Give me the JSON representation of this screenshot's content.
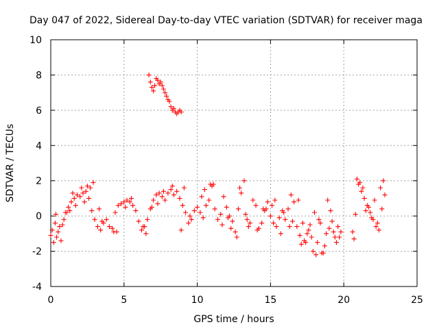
{
  "chart_data": {
    "type": "scatter",
    "title": "Day 047 of 2022, Sidereal Day-to-day VTEC variation (SDTVAR) for receiver maga",
    "xlabel": "GPS time / hours",
    "ylabel": "SDTVAR / TECUs",
    "xlim": [
      0,
      25
    ],
    "ylim": [
      -4,
      10
    ],
    "xticks": [
      "0",
      "5",
      "10",
      "15",
      "20",
      "25"
    ],
    "yticks": [
      "-4",
      "-2",
      "0",
      "2",
      "4",
      "6",
      "8",
      "10"
    ],
    "grid": true,
    "marker": "+",
    "series": [
      {
        "name": "SDTVAR",
        "color": "#ff0000",
        "x": [
          0.0,
          0.2,
          0.4,
          0.6,
          0.8,
          1.0,
          1.2,
          1.4,
          1.6,
          1.8,
          2.0,
          2.2,
          2.4,
          2.6,
          2.8,
          3.0,
          3.2,
          3.4,
          3.6,
          3.8,
          4.0,
          4.2,
          4.4,
          4.6,
          4.8,
          5.0,
          5.2,
          5.4,
          5.6,
          5.8,
          6.0,
          6.2,
          6.4,
          6.6,
          6.8,
          7.0,
          7.2,
          7.4,
          7.6,
          7.8,
          8.0,
          8.2,
          8.4,
          8.6,
          8.8,
          9.0,
          9.2,
          9.4,
          9.6,
          9.8,
          10.0,
          10.2,
          10.4,
          10.6,
          10.8,
          11.0,
          11.2,
          11.4,
          11.6,
          11.8,
          12.0,
          12.2,
          12.4,
          12.6,
          12.8,
          13.0,
          13.2,
          13.4,
          13.6,
          13.8,
          14.0,
          14.2,
          14.4,
          14.6,
          14.8,
          15.0,
          15.2,
          15.4,
          15.6,
          15.8,
          16.0,
          16.2,
          16.4,
          16.6,
          16.8,
          17.0,
          17.2,
          17.4,
          17.6,
          17.8,
          18.0,
          18.2,
          18.4,
          18.6,
          18.8,
          19.0,
          19.2,
          19.4,
          19.6,
          19.8,
          20.6,
          20.8,
          21.0,
          21.2,
          21.4,
          21.6,
          21.8,
          22.0,
          22.2,
          22.4,
          22.6,
          22.8,
          6.7,
          6.8,
          6.9,
          7.0,
          7.1,
          7.2,
          7.3,
          7.4,
          7.5,
          7.6,
          7.7,
          7.8,
          7.9,
          8.0,
          8.1,
          8.2,
          8.3,
          8.4,
          8.5,
          8.6,
          8.7,
          8.8,
          8.9,
          0.3,
          0.5,
          0.9,
          1.3,
          1.7,
          2.1,
          2.5,
          2.9,
          3.5,
          4.3,
          5.5,
          6.3,
          6.9,
          7.7,
          8.3,
          8.9,
          9.5,
          10.3,
          10.9,
          11.7,
          12.3,
          12.9,
          13.3,
          14.1,
          14.7,
          15.3,
          15.9,
          16.5,
          17.1,
          17.5,
          17.9,
          18.3,
          18.7,
          19.1,
          19.5,
          20.9,
          21.3,
          21.7,
          22.1,
          22.5,
          0.1,
          0.35,
          0.7,
          1.1,
          1.5,
          2.3,
          2.7,
          3.3,
          4.5,
          5.1,
          6.5,
          7.3,
          9.1,
          10.5,
          11.1,
          12.1,
          12.7,
          13.5,
          14.5,
          15.1,
          15.7,
          16.3,
          16.9,
          17.3,
          17.7,
          18.1,
          18.5,
          18.9,
          19.3,
          19.7,
          20.7,
          21.1,
          21.5,
          21.9,
          22.3,
          22.7
        ],
        "y": [
          -1.1,
          -1.5,
          -1.2,
          -0.6,
          -0.5,
          0.2,
          0.5,
          0.8,
          1.0,
          1.2,
          1.1,
          1.3,
          1.4,
          1.0,
          0.3,
          -0.2,
          -0.6,
          -0.8,
          -0.4,
          -0.2,
          -0.6,
          -0.7,
          0.2,
          0.6,
          0.7,
          0.8,
          0.9,
          0.8,
          0.6,
          0.3,
          -0.3,
          -0.8,
          -0.6,
          -0.2,
          0.4,
          0.9,
          1.2,
          1.3,
          1.1,
          0.9,
          1.3,
          1.5,
          1.2,
          1.4,
          1.0,
          0.6,
          0.2,
          -0.4,
          -0.2,
          0.3,
          0.5,
          0.2,
          -0.1,
          0.6,
          0.9,
          1.7,
          0.4,
          -0.2,
          0.1,
          1.1,
          0.5,
          0.0,
          -0.3,
          -0.9,
          0.4,
          1.3,
          2.0,
          -0.2,
          -0.4,
          0.9,
          0.6,
          -0.7,
          -0.4,
          0.3,
          0.8,
          0.0,
          -0.4,
          -0.6,
          -0.1,
          0.3,
          -0.2,
          0.4,
          1.2,
          0.8,
          -0.6,
          -1.1,
          -0.4,
          -1.5,
          -0.8,
          -1.2,
          0.2,
          -1.5,
          -0.4,
          -2.1,
          -1.0,
          -0.7,
          -0.3,
          -1.2,
          -0.6,
          -0.9,
          -0.9,
          0.1,
          1.8,
          1.4,
          1.0,
          0.6,
          0.2,
          -0.2,
          -0.6,
          -0.8,
          0.4,
          1.2,
          8.0,
          7.6,
          7.3,
          7.1,
          7.4,
          7.8,
          7.7,
          7.5,
          7.6,
          7.4,
          7.2,
          7.0,
          6.8,
          6.6,
          6.5,
          6.2,
          6.0,
          6.1,
          5.9,
          5.8,
          5.9,
          6.0,
          5.9,
          -0.4,
          -0.9,
          -0.2,
          0.3,
          0.6,
          1.6,
          1.7,
          1.9,
          -0.3,
          -0.9,
          1.0,
          -0.6,
          0.5,
          1.4,
          1.7,
          -0.8,
          0.0,
          1.1,
          1.8,
          -0.5,
          -0.7,
          1.6,
          0.1,
          -0.8,
          0.4,
          0.9,
          0.2,
          -0.3,
          -1.6,
          -1.0,
          -2.0,
          -0.2,
          -1.7,
          0.3,
          -1.5,
          2.1,
          1.6,
          0.5,
          0.9,
          1.6,
          -0.8,
          0.1,
          -1.4,
          0.2,
          1.3,
          0.8,
          1.6,
          0.4,
          -0.9,
          0.5,
          -1.0,
          0.7,
          1.6,
          1.5,
          1.8,
          -0.1,
          -1.2,
          -0.6,
          0.4,
          0.6,
          -1.0,
          -0.6,
          0.9,
          -1.4,
          -0.5,
          -2.2,
          -2.1,
          0.9,
          -0.9,
          -1.2,
          -1.3,
          1.9,
          0.3,
          -0.1,
          -0.4,
          2.0
        ]
      }
    ]
  }
}
